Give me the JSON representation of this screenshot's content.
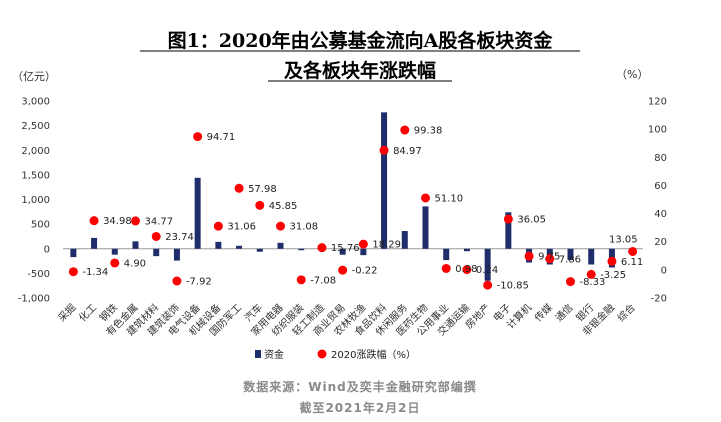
{
  "chart_data": {
    "type": "bar+scatter",
    "title": [
      "图1：2020年由公募基金流向A股各板块资金",
      "及各板块年涨跌幅"
    ],
    "left_unit": "（亿元）",
    "right_unit": "（%）",
    "y_left": {
      "min": -1000,
      "max": 3000,
      "ticks": [
        "-1,000",
        "-500",
        "0",
        "500",
        "1,000",
        "1,500",
        "2,000",
        "2,500",
        "3,000"
      ]
    },
    "y_right": {
      "min": -20,
      "max": 120,
      "ticks": [
        "-20",
        "0",
        "20",
        "40",
        "60",
        "80",
        "100",
        "120"
      ]
    },
    "grid": false,
    "categories": [
      "采掘",
      "化工",
      "钢铁",
      "有色金属",
      "建筑材料",
      "建筑装饰",
      "电气设备",
      "机械设备",
      "国防军工",
      "汽车",
      "家用电器",
      "纺织服装",
      "轻工制造",
      "商业贸易",
      "农林牧渔",
      "食品饮料",
      "休闲服务",
      "医药生物",
      "公用事业",
      "交通运输",
      "房地产",
      "电子",
      "计算机",
      "传媒",
      "通信",
      "银行",
      "非银金融",
      "综合"
    ],
    "series": [
      {
        "name": "资金",
        "axis": "left",
        "color": "#1f2d6b",
        "values": [
          -170,
          220,
          -120,
          150,
          -150,
          -240,
          1440,
          140,
          60,
          -60,
          120,
          -30,
          -40,
          -120,
          -130,
          2770,
          360,
          860,
          -230,
          -50,
          -650,
          740,
          -280,
          -320,
          -230,
          -320,
          -380,
          -20
        ]
      },
      {
        "name": "2020涨跌幅（%）",
        "axis": "right",
        "color": "#ff0000",
        "values": [
          -1.34,
          34.98,
          4.9,
          34.77,
          23.74,
          -7.92,
          94.71,
          31.06,
          57.98,
          45.85,
          31.08,
          -7.08,
          15.76,
          -0.22,
          18.29,
          84.97,
          99.38,
          51.1,
          0.98,
          0.24,
          -10.85,
          36.05,
          9.75,
          7.86,
          -8.33,
          -3.25,
          6.11,
          13.05
        ],
        "labels": [
          "-1.34",
          "34.98",
          "4.90",
          "34.77",
          "23.74",
          "-7.92",
          "94.71",
          "31.06",
          "57.98",
          "45.85",
          "31.08",
          "-7.08",
          "15.76",
          "-0.22",
          "18.29",
          "84.97",
          "99.38",
          "51.10",
          "0.98",
          "0.24",
          "-10.85",
          "36.05",
          "9.75",
          "7.86",
          "-8.33",
          "-3.25",
          "6.11",
          "13.05"
        ]
      }
    ],
    "legend": {
      "position": "bottom",
      "items": [
        "资金",
        "2020涨跌幅（%）"
      ]
    },
    "source": "数据来源：Wind及奕丰金融研究部编撰",
    "date_note": "截至2021年2月2日"
  }
}
